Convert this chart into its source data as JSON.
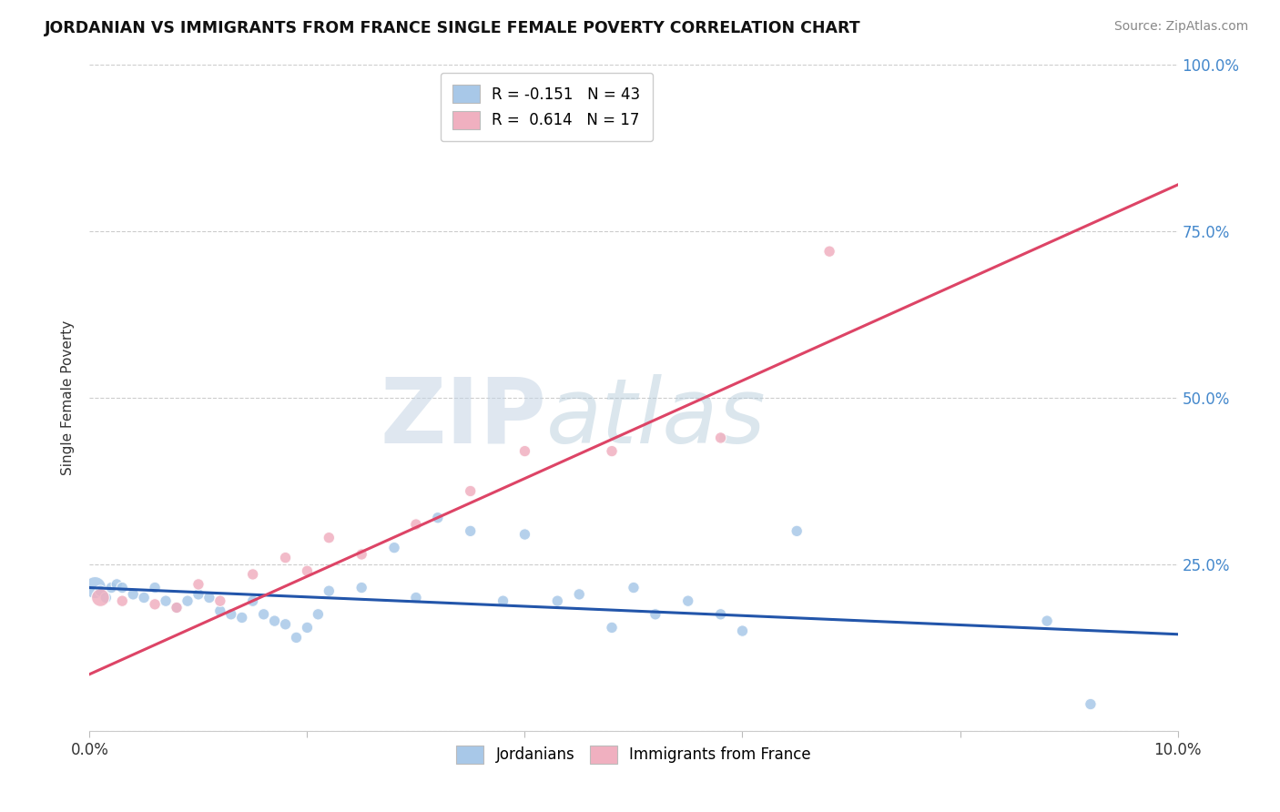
{
  "title": "JORDANIAN VS IMMIGRANTS FROM FRANCE SINGLE FEMALE POVERTY CORRELATION CHART",
  "source": "Source: ZipAtlas.com",
  "ylabel": "Single Female Poverty",
  "xlim": [
    0.0,
    0.1
  ],
  "ylim": [
    0.0,
    1.0
  ],
  "yticks": [
    0.0,
    0.25,
    0.5,
    0.75,
    1.0
  ],
  "ytick_labels": [
    "",
    "25.0%",
    "50.0%",
    "75.0%",
    "100.0%"
  ],
  "xticks": [
    0.0,
    0.02,
    0.04,
    0.06,
    0.08,
    0.1
  ],
  "xtick_labels": [
    "0.0%",
    "",
    "",
    "",
    "",
    "10.0%"
  ],
  "legend1_label": "R = -0.151   N = 43",
  "legend2_label": "R =  0.614   N = 17",
  "group1_color": "#a8c8e8",
  "group2_color": "#f0b0c0",
  "line1_color": "#2255aa",
  "line2_color": "#dd4466",
  "watermark_zip": "ZIP",
  "watermark_atlas": "atlas",
  "blue_line_x0": 0.0,
  "blue_line_y0": 0.215,
  "blue_line_x1": 0.1,
  "blue_line_y1": 0.145,
  "pink_line_x0": 0.0,
  "pink_line_y0": 0.085,
  "pink_line_x1": 0.1,
  "pink_line_y1": 0.82,
  "jordanians_x": [
    0.0005,
    0.001,
    0.0015,
    0.002,
    0.0025,
    0.003,
    0.004,
    0.005,
    0.006,
    0.007,
    0.008,
    0.009,
    0.01,
    0.011,
    0.012,
    0.013,
    0.014,
    0.015,
    0.016,
    0.017,
    0.018,
    0.019,
    0.02,
    0.021,
    0.022,
    0.025,
    0.028,
    0.03,
    0.032,
    0.035,
    0.038,
    0.04,
    0.043,
    0.045,
    0.048,
    0.05,
    0.052,
    0.055,
    0.058,
    0.06,
    0.065,
    0.088,
    0.092
  ],
  "jordanians_y": [
    0.215,
    0.21,
    0.2,
    0.215,
    0.22,
    0.215,
    0.205,
    0.2,
    0.215,
    0.195,
    0.185,
    0.195,
    0.205,
    0.2,
    0.18,
    0.175,
    0.17,
    0.195,
    0.175,
    0.165,
    0.16,
    0.14,
    0.155,
    0.175,
    0.21,
    0.215,
    0.275,
    0.2,
    0.32,
    0.3,
    0.195,
    0.295,
    0.195,
    0.205,
    0.155,
    0.215,
    0.175,
    0.195,
    0.175,
    0.15,
    0.3,
    0.165,
    0.04
  ],
  "jordanians_size": [
    300,
    80,
    80,
    80,
    80,
    80,
    80,
    80,
    80,
    80,
    80,
    80,
    80,
    80,
    80,
    80,
    80,
    80,
    80,
    80,
    80,
    80,
    80,
    80,
    80,
    80,
    80,
    80,
    80,
    80,
    80,
    80,
    80,
    80,
    80,
    80,
    80,
    80,
    80,
    80,
    80,
    80,
    80
  ],
  "france_x": [
    0.001,
    0.003,
    0.006,
    0.008,
    0.01,
    0.012,
    0.015,
    0.018,
    0.02,
    0.022,
    0.025,
    0.03,
    0.035,
    0.04,
    0.048,
    0.058,
    0.068
  ],
  "france_y": [
    0.2,
    0.195,
    0.19,
    0.185,
    0.22,
    0.195,
    0.235,
    0.26,
    0.24,
    0.29,
    0.265,
    0.31,
    0.36,
    0.42,
    0.42,
    0.44,
    0.72
  ],
  "france_size": [
    200,
    80,
    80,
    80,
    80,
    80,
    80,
    80,
    80,
    80,
    80,
    80,
    80,
    80,
    80,
    80,
    80
  ]
}
